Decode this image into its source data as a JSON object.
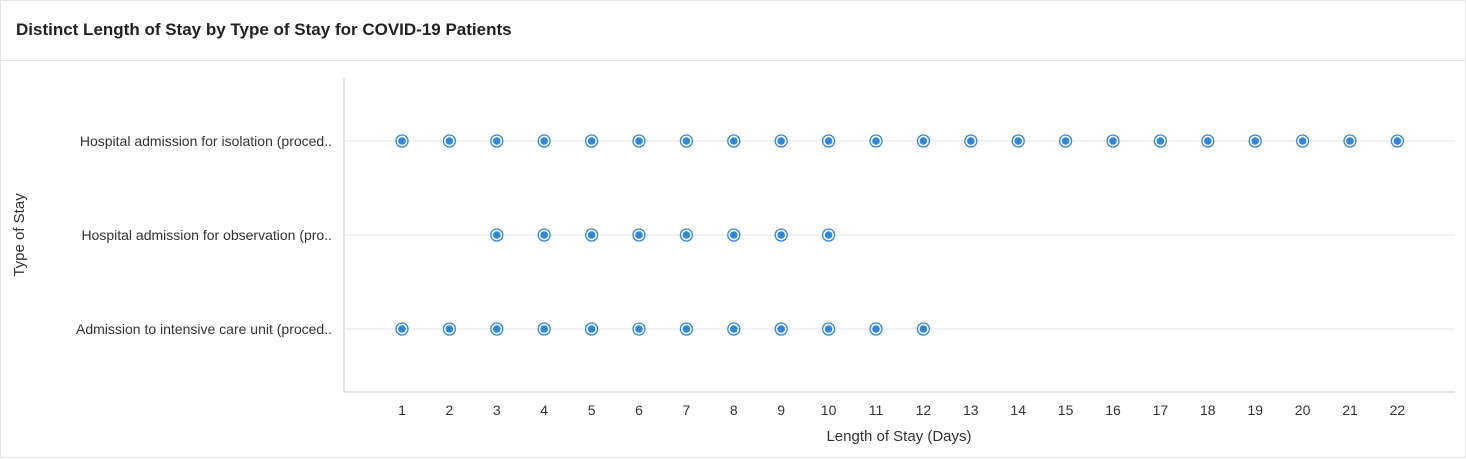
{
  "title": "Distinct Length of Stay by Type of Stay for COVID-19 Patients",
  "chart_data": {
    "type": "scatter",
    "title": "Distinct Length of Stay by Type of Stay for COVID-19 Patients",
    "xlabel": "Length of Stay (Days)",
    "ylabel": "Type of Stay",
    "x_ticks": [
      1,
      2,
      3,
      4,
      5,
      6,
      7,
      8,
      9,
      10,
      11,
      12,
      13,
      14,
      15,
      16,
      17,
      18,
      19,
      20,
      21,
      22
    ],
    "xlim": [
      0,
      23
    ],
    "categories": [
      "Hospital admission for isolation (proced..",
      "Hospital admission for observation (pro..",
      "Admission to intensive care unit (proced.."
    ],
    "series": [
      {
        "category": "Hospital admission for isolation (proced..",
        "x": [
          1,
          2,
          3,
          4,
          5,
          6,
          7,
          8,
          9,
          10,
          11,
          12,
          13,
          14,
          15,
          16,
          17,
          18,
          19,
          20,
          21,
          22
        ]
      },
      {
        "category": "Hospital admission for observation (pro..",
        "x": [
          3,
          4,
          5,
          6,
          7,
          8,
          9,
          10
        ]
      },
      {
        "category": "Admission to intensive care unit (proced..",
        "x": [
          1,
          2,
          3,
          4,
          5,
          6,
          7,
          8,
          9,
          10,
          11,
          12
        ]
      }
    ],
    "grid": "horizontal",
    "legend": "none",
    "point_color": "#2e86de"
  }
}
